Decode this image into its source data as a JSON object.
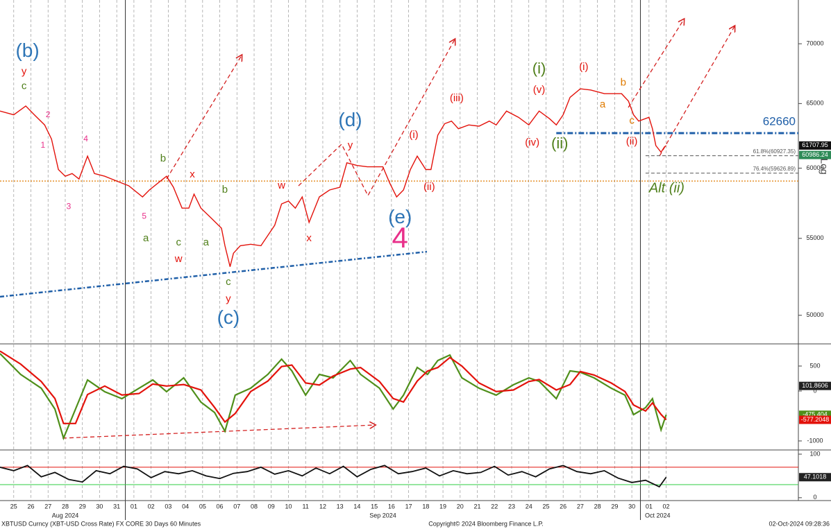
{
  "chart_data": [
    {
      "type": "line",
      "log_y": true,
      "grid": true,
      "y_label": "Log",
      "xlim": [
        -0.8,
        45.7
      ],
      "ylim": [
        48300,
        73900
      ],
      "yticks": [
        50000,
        55000,
        60000,
        65000,
        70000
      ],
      "xticks": [
        {
          "value": 0,
          "label": "25"
        },
        {
          "value": 1,
          "label": "26"
        },
        {
          "value": 2,
          "label": "27"
        },
        {
          "value": 3,
          "label": "28"
        },
        {
          "value": 4,
          "label": "29"
        },
        {
          "value": 5,
          "label": "30"
        },
        {
          "value": 6,
          "label": "31"
        },
        {
          "value": 7,
          "label": "01"
        },
        {
          "value": 8,
          "label": "02"
        },
        {
          "value": 9,
          "label": "03"
        },
        {
          "value": 10,
          "label": "04"
        },
        {
          "value": 11,
          "label": "05"
        },
        {
          "value": 12,
          "label": "06"
        },
        {
          "value": 13,
          "label": "07"
        },
        {
          "value": 14,
          "label": "08"
        },
        {
          "value": 15,
          "label": "09"
        },
        {
          "value": 16,
          "label": "10"
        },
        {
          "value": 17,
          "label": "11"
        },
        {
          "value": 18,
          "label": "12"
        },
        {
          "value": 19,
          "label": "13"
        },
        {
          "value": 20,
          "label": "14"
        },
        {
          "value": 21,
          "label": "15"
        },
        {
          "value": 22,
          "label": "16"
        },
        {
          "value": 23,
          "label": "17"
        },
        {
          "value": 24,
          "label": "18"
        },
        {
          "value": 25,
          "label": "19"
        },
        {
          "value": 26,
          "label": "20"
        },
        {
          "value": 27,
          "label": "21"
        },
        {
          "value": 28,
          "label": "22"
        },
        {
          "value": 29,
          "label": "23"
        },
        {
          "value": 30,
          "label": "24"
        },
        {
          "value": 31,
          "label": "25"
        },
        {
          "value": 32,
          "label": "26"
        },
        {
          "value": 33,
          "label": "27"
        },
        {
          "value": 34,
          "label": "28"
        },
        {
          "value": 35,
          "label": "29"
        },
        {
          "value": 36,
          "label": "30"
        },
        {
          "value": 37,
          "label": "01"
        },
        {
          "value": 38,
          "label": "02"
        }
      ],
      "x_groups": [
        {
          "value": 3,
          "label": "Aug 2024"
        },
        {
          "value": 21.5,
          "label": "Sep 2024"
        },
        {
          "value": 37.5,
          "label": "Oct 2024"
        }
      ],
      "month_breaks": [
        6.5,
        36.5
      ],
      "color": "#e3120b",
      "x": [
        -0.8,
        0,
        0.7,
        1.2,
        1.8,
        2.2,
        2.6,
        3.0,
        3.4,
        3.8,
        4.3,
        4.7,
        5.3,
        6.1,
        6.7,
        7.5,
        7.9,
        8.5,
        8.9,
        9.3,
        9.8,
        10.2,
        10.5,
        10.9,
        11.5,
        12.1,
        12.3,
        12.6,
        12.8,
        13.2,
        13.8,
        14.4,
        14.8,
        15.2,
        15.6,
        16.0,
        16.4,
        16.8,
        17.2,
        17.8,
        18.4,
        19.0,
        19.4,
        20.0,
        20.6,
        21.5,
        21.9,
        22.3,
        22.7,
        23.1,
        23.5,
        24.0,
        24.3,
        24.7,
        25.1,
        25.5,
        25.9,
        26.5,
        27.1,
        27.7,
        28.1,
        28.7,
        29.4,
        30.0,
        30.6,
        31.2,
        31.6,
        32.0,
        32.4,
        33.0,
        33.6,
        34.4,
        35.4,
        35.8,
        36.1,
        36.4,
        37.0,
        37.2,
        37.4,
        37.7,
        37.9,
        38.0
      ],
      "values": [
        64400,
        64100,
        64800,
        64100,
        63300,
        62200,
        59900,
        59400,
        59600,
        59200,
        60900,
        59600,
        59400,
        59000,
        58700,
        57900,
        58400,
        59000,
        59400,
        58600,
        57100,
        57100,
        58100,
        57100,
        56400,
        55700,
        54500,
        53100,
        54000,
        54500,
        54600,
        54500,
        55200,
        55900,
        57400,
        57600,
        57100,
        57900,
        56100,
        57900,
        58400,
        58600,
        60400,
        60200,
        60100,
        60100,
        58900,
        57900,
        58400,
        59900,
        60900,
        59900,
        59900,
        62500,
        63400,
        63600,
        63000,
        63300,
        63200,
        63600,
        63300,
        64400,
        63900,
        63300,
        64400,
        63800,
        63300,
        64100,
        65500,
        66200,
        66100,
        65800,
        65800,
        65200,
        64100,
        63600,
        63900,
        63000,
        61700,
        61200,
        61600,
        61700
      ],
      "levels": [
        {
          "value": 62660,
          "label": "62660",
          "from": 31.6,
          "color": "#1f5fa8",
          "style": "dashdot"
        },
        {
          "value": 60927.35,
          "label": "61.8%(60927.35)",
          "from": 36.8,
          "color": "#555555",
          "style": "dash"
        },
        {
          "value": 59626.89,
          "label": "76.4%(59626.89)",
          "from": 36.8,
          "color": "#555555",
          "style": "dash"
        },
        {
          "value": 59050,
          "from": -0.8,
          "color": "#e07b00",
          "style": "dot"
        }
      ],
      "last_values": [
        {
          "value": 61707.95,
          "color": "#111111"
        },
        {
          "value": 60986.24,
          "color": "#2e8b57"
        }
      ],
      "annotations": [
        {
          "text": "(b)",
          "x": 0.8,
          "y": 69300,
          "color": "#2e75b6",
          "size": "large"
        },
        {
          "text": "y",
          "x": 0.6,
          "y": 67600,
          "color": "#e3120b",
          "size": "mid"
        },
        {
          "text": "c",
          "x": 0.6,
          "y": 66400,
          "color": "#4f7f1a",
          "size": "mid"
        },
        {
          "text": "2",
          "x": 2.0,
          "y": 64100,
          "color": "#e8308a",
          "size": "small"
        },
        {
          "text": "1",
          "x": 1.7,
          "y": 61700,
          "color": "#e8308a",
          "size": "small"
        },
        {
          "text": "3",
          "x": 3.2,
          "y": 57200,
          "color": "#e8308a",
          "size": "small"
        },
        {
          "text": "4",
          "x": 4.2,
          "y": 62200,
          "color": "#e8308a",
          "size": "small"
        },
        {
          "text": "5",
          "x": 7.6,
          "y": 56500,
          "color": "#e8308a",
          "size": "small"
        },
        {
          "text": "a",
          "x": 7.7,
          "y": 55000,
          "color": "#4f7f1a",
          "size": "mid"
        },
        {
          "text": "b",
          "x": 8.7,
          "y": 60700,
          "color": "#4f7f1a",
          "size": "mid"
        },
        {
          "text": "c",
          "x": 9.6,
          "y": 54700,
          "color": "#4f7f1a",
          "size": "mid"
        },
        {
          "text": "w",
          "x": 9.6,
          "y": 53600,
          "color": "#e3120b",
          "size": "mid"
        },
        {
          "text": "x",
          "x": 10.4,
          "y": 59500,
          "color": "#e3120b",
          "size": "mid"
        },
        {
          "text": "a",
          "x": 11.2,
          "y": 54700,
          "color": "#4f7f1a",
          "size": "mid"
        },
        {
          "text": "b",
          "x": 12.3,
          "y": 58400,
          "color": "#4f7f1a",
          "size": "mid"
        },
        {
          "text": "c",
          "x": 12.5,
          "y": 52100,
          "color": "#4f7f1a",
          "size": "mid"
        },
        {
          "text": "y",
          "x": 12.5,
          "y": 51000,
          "color": "#e3120b",
          "size": "mid"
        },
        {
          "text": "(c)",
          "x": 12.5,
          "y": 49800,
          "color": "#2e75b6",
          "size": "large"
        },
        {
          "text": "w",
          "x": 15.6,
          "y": 58700,
          "color": "#e3120b",
          "size": "mid"
        },
        {
          "text": "x",
          "x": 17.2,
          "y": 55000,
          "color": "#e3120b",
          "size": "mid"
        },
        {
          "text": "(d)",
          "x": 19.6,
          "y": 63600,
          "color": "#2e75b6",
          "size": "large"
        },
        {
          "text": "y",
          "x": 19.6,
          "y": 61700,
          "color": "#e3120b",
          "size": "mid"
        },
        {
          "text": "(e)",
          "x": 22.5,
          "y": 56400,
          "color": "#2e75b6",
          "size": "large"
        },
        {
          "text": "4",
          "x": 22.5,
          "y": 54900,
          "color": "#e8308a",
          "size": "xl"
        },
        {
          "text": "(i)",
          "x": 23.3,
          "y": 62500,
          "color": "#e3120b",
          "size": "mid"
        },
        {
          "text": "(ii)",
          "x": 24.2,
          "y": 58600,
          "color": "#e3120b",
          "size": "mid"
        },
        {
          "text": "(iii)",
          "x": 25.8,
          "y": 65400,
          "color": "#e3120b",
          "size": "mid"
        },
        {
          "text": "(iv)",
          "x": 30.2,
          "y": 61900,
          "color": "#e3120b",
          "size": "mid"
        },
        {
          "text": "(v)",
          "x": 30.6,
          "y": 66100,
          "color": "#e3120b",
          "size": "mid"
        },
        {
          "text": "(i)",
          "x": 30.6,
          "y": 67800,
          "color": "#4f7f1a",
          "size": "green"
        },
        {
          "text": "(ii)",
          "x": 31.8,
          "y": 61800,
          "color": "#4f7f1a",
          "size": "green"
        },
        {
          "text": "(i)",
          "x": 33.2,
          "y": 68000,
          "color": "#e3120b",
          "size": "mid"
        },
        {
          "text": "b",
          "x": 35.5,
          "y": 66700,
          "color": "#e07b00",
          "size": "mid"
        },
        {
          "text": "a",
          "x": 34.3,
          "y": 64900,
          "color": "#e07b00",
          "size": "mid"
        },
        {
          "text": "c",
          "x": 36.0,
          "y": 63600,
          "color": "#e07b00",
          "size": "mid"
        },
        {
          "text": "(ii)",
          "x": 36.0,
          "y": 62000,
          "color": "#e3120b",
          "size": "mid"
        },
        {
          "text": "Alt (ii)",
          "x": 37.0,
          "y": 58500,
          "color": "#4f7f1a",
          "size": "italic"
        }
      ]
    },
    {
      "type": "line",
      "xlim": [
        -0.8,
        45.7
      ],
      "ylim": [
        -1167,
        930
      ],
      "yticks": [
        -1000,
        0,
        500
      ],
      "x": [
        -0.8,
        0.4,
        1.6,
        2.4,
        2.9,
        3.6,
        4.3,
        5.3,
        6.3,
        7.3,
        8.1,
        8.9,
        9.9,
        10.9,
        11.7,
        12.3,
        12.9,
        13.8,
        14.8,
        15.6,
        16.2,
        17.0,
        17.8,
        18.6,
        19.6,
        20.2,
        21.3,
        22.1,
        22.7,
        23.5,
        24.1,
        24.7,
        25.4,
        26.1,
        27.1,
        28.1,
        29.1,
        30.0,
        30.6,
        31.6,
        32.4,
        33.0,
        33.8,
        34.8,
        35.6,
        36.1,
        36.8,
        37.2,
        37.7,
        38.0
      ],
      "series": [
        {
          "color": "#4f8f1a",
          "values": [
            750,
            333,
            56,
            -361,
            -944,
            -361,
            222,
            -14,
            -153,
            56,
            222,
            -14,
            264,
            -222,
            -431,
            -806,
            -83,
            56,
            333,
            639,
            403,
            -83,
            333,
            264,
            611,
            333,
            56,
            -361,
            -83,
            472,
            333,
            611,
            722,
            264,
            56,
            -83,
            125,
            264,
            194,
            -153,
            403,
            375,
            264,
            56,
            -83,
            -472,
            -333,
            -153,
            -778,
            -475.404
          ]
        },
        {
          "color": "#e3120b",
          "values": [
            800,
            540,
            190,
            -150,
            -650,
            -650,
            -70,
            100,
            -80,
            -50,
            140,
            100,
            130,
            20,
            -330,
            -620,
            -450,
            -10,
            200,
            490,
            520,
            160,
            120,
            300,
            440,
            470,
            190,
            -150,
            -220,
            200,
            400,
            470,
            670,
            500,
            160,
            -10,
            20,
            190,
            230,
            20,
            130,
            390,
            320,
            160,
            -10,
            -280,
            -400,
            -240,
            -470,
            -577.2048
          ]
        }
      ],
      "last_values": [
        {
          "value": 101.8606,
          "color": "#222222"
        },
        {
          "value": -475.404,
          "color": "#4f8f1a"
        },
        {
          "value": -577.2048,
          "color": "#e3120b"
        }
      ]
    },
    {
      "type": "line",
      "xlim": [
        -0.8,
        45.7
      ],
      "ylim": [
        -6.6,
        108
      ],
      "yticks": [
        0,
        100
      ],
      "color": "#111111",
      "x": [
        -0.8,
        0,
        0.8,
        1.6,
        2.4,
        3.2,
        4,
        4.8,
        5.6,
        6.4,
        7.2,
        8,
        8.8,
        9.6,
        10.4,
        11.2,
        12,
        12.8,
        13.6,
        14.4,
        15.2,
        16,
        16.8,
        17.6,
        18.4,
        19.2,
        20,
        20.8,
        21.6,
        22.4,
        23.2,
        24,
        24.8,
        25.6,
        26.4,
        27.2,
        28,
        28.8,
        29.6,
        30.4,
        31.2,
        32,
        32.8,
        33.6,
        34.4,
        35.2,
        36,
        36.8,
        37.6,
        38
      ],
      "values": [
        70,
        62,
        74,
        48,
        58,
        42,
        36,
        62,
        55,
        72,
        66,
        46,
        60,
        55,
        62,
        50,
        44,
        56,
        60,
        70,
        54,
        62,
        50,
        68,
        55,
        72,
        48,
        65,
        74,
        55,
        60,
        68,
        50,
        62,
        55,
        58,
        72,
        52,
        60,
        48,
        66,
        74,
        60,
        55,
        62,
        45,
        35,
        40,
        25,
        47.1018
      ],
      "levels": [
        {
          "value": 70,
          "from": -0.8,
          "color": "#e3120b",
          "style": "solid"
        },
        {
          "value": 30,
          "from": -0.8,
          "color": "#2ecc40",
          "style": "solid"
        }
      ],
      "last_values": [
        {
          "value": 47.1018,
          "color": "#222222"
        }
      ]
    }
  ],
  "footer": {
    "security": "XBTUSD Curncy (XBT-USD Cross Rate) FX CORE 30 Days 60 Minutes",
    "copyright": "Copyright© 2024 Bloomberg Finance L.P.",
    "timestamp": "02-Oct-2024 09:28:36"
  }
}
